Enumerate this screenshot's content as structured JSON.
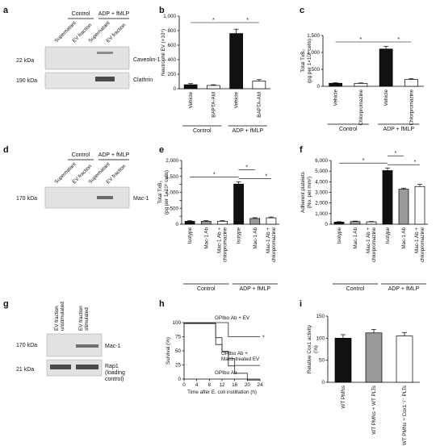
{
  "panel_labels": [
    "a",
    "b",
    "c",
    "d",
    "e",
    "f",
    "g",
    "h",
    "i"
  ],
  "blot_a": {
    "lanes": [
      "Supernatant",
      "EV fraction",
      "Supernatant",
      "EV fraction"
    ],
    "group_control": "Control",
    "group_stim": "ADP + fMLP",
    "rows": [
      {
        "kda": "22 kDa",
        "name": "Caveolin-1"
      },
      {
        "kda": "190 kDa",
        "name": "Clathrin"
      }
    ]
  },
  "blot_d": {
    "lanes": [
      "Supernatant",
      "EV fraction",
      "Supernatant",
      "EV fraction"
    ],
    "group_control": "Control",
    "group_stim": "ADP + fMLP",
    "rows": [
      {
        "kda": "170 kDa",
        "name": "Mac-1"
      }
    ]
  },
  "blot_g": {
    "lanes": [
      "EV fraction unstimulated",
      "EV fraction stimulated"
    ],
    "rows": [
      {
        "kda": "170 kDa",
        "name": "Mac-1"
      },
      {
        "kda": "21 kDa",
        "name": "Rap1 (loading control)"
      }
    ]
  },
  "chart_data": [
    {
      "panel": "b",
      "type": "bar",
      "ylabel": "Neutrophil EV (×10⁵)",
      "ylim": [
        0,
        1000
      ],
      "yticks": [
        0,
        200,
        400,
        600,
        800,
        1000
      ],
      "categories": [
        "Vehicle",
        "BAPTA-AM",
        "Vehicle",
        "BAPTA-AM"
      ],
      "groups": [
        {
          "label": "Control",
          "span": [
            0,
            1
          ]
        },
        {
          "label": "ADP + fMLP",
          "span": [
            2,
            3
          ]
        }
      ],
      "values": [
        55,
        45,
        760,
        105
      ],
      "errors": [
        15,
        10,
        60,
        20
      ],
      "colors": [
        "#111111",
        "#ffffff",
        "#111111",
        "#ffffff"
      ],
      "annotations": [
        "*",
        "*"
      ]
    },
    {
      "panel": "c",
      "type": "bar",
      "ylabel": "Total TxB₂ (pg per 1×10⁶ cells)",
      "ylim": [
        0,
        1500
      ],
      "yticks": [
        0,
        500,
        1000,
        1500
      ],
      "categories": [
        "Vehicle",
        "Chlorpromazine",
        "Vehicle",
        "Chlorpromazine"
      ],
      "groups": [
        {
          "label": "Control",
          "span": [
            0,
            1
          ]
        },
        {
          "label": "ADP + fMLP",
          "span": [
            2,
            3
          ]
        }
      ],
      "values": [
        90,
        85,
        1100,
        200
      ],
      "errors": [
        15,
        15,
        80,
        25
      ],
      "colors": [
        "#111111",
        "#ffffff",
        "#111111",
        "#ffffff"
      ],
      "annotations": [
        "*",
        "*"
      ]
    },
    {
      "panel": "e",
      "type": "bar",
      "ylabel": "Total TxB₂ (pg per 1×10⁶ cells)",
      "ylim": [
        0,
        2000
      ],
      "yticks": [
        0,
        250,
        500,
        750,
        1000,
        1250,
        1500,
        1750,
        2000
      ],
      "yticklabels": [
        "0",
        "",
        "500",
        "",
        "1,000",
        "",
        "1,500",
        "",
        "2,000"
      ],
      "categories": [
        "Isotype",
        "Mac-1 Ab",
        "Mac-1 Ab + chlorpromazine",
        "Isotype",
        "Mac-1 Ab",
        "Mac-1 Ab + chlorpromazine"
      ],
      "groups": [
        {
          "label": "Control",
          "span": [
            0,
            2
          ]
        },
        {
          "label": "ADP + fMLP",
          "span": [
            3,
            5
          ]
        }
      ],
      "values": [
        90,
        90,
        90,
        1260,
        180,
        200
      ],
      "errors": [
        20,
        20,
        20,
        70,
        25,
        25
      ],
      "colors": [
        "#111111",
        "#9a9a9a",
        "#ffffff",
        "#111111",
        "#9a9a9a",
        "#ffffff"
      ],
      "annotations": [
        "*",
        "*",
        "*"
      ]
    },
    {
      "panel": "f",
      "type": "bar",
      "ylabel": "Adherent platelets (No. per mm²)",
      "ylim": [
        0,
        6000
      ],
      "yticks": [
        0,
        1000,
        2000,
        3000,
        4000,
        5000,
        6000
      ],
      "yticklabels": [
        "0",
        "1,000",
        "2,000",
        "3,000",
        "4,000",
        "5,000",
        "6,000"
      ],
      "categories": [
        "Isotype",
        "Mac-1 Ab",
        "Mac-1 Ab + chlorpromazine",
        "Isotype",
        "Mac-1 Ab",
        "Mac-1 Ab + chlorpromazine"
      ],
      "groups": [
        {
          "label": "Control",
          "span": [
            0,
            2
          ]
        },
        {
          "label": "ADP + fMLP",
          "span": [
            3,
            5
          ]
        }
      ],
      "values": [
        200,
        250,
        220,
        5050,
        3300,
        3550
      ],
      "errors": [
        40,
        50,
        40,
        250,
        100,
        200
      ],
      "colors": [
        "#111111",
        "#9a9a9a",
        "#ffffff",
        "#111111",
        "#9a9a9a",
        "#ffffff"
      ],
      "annotations": [
        "*",
        "*",
        "*"
      ]
    },
    {
      "panel": "h",
      "type": "line",
      "xlabel": "Time after E. coli instillation (h)",
      "ylabel": "Survival (%)",
      "xlim": [
        0,
        24
      ],
      "ylim": [
        0,
        100
      ],
      "xticks": [
        0,
        4,
        8,
        12,
        16,
        20,
        24
      ],
      "yticks": [
        0,
        25,
        50,
        75,
        100
      ],
      "series": [
        {
          "name": "GPIbα Ab + EV",
          "x": [
            0,
            14,
            14,
            24
          ],
          "y": [
            100,
            100,
            75,
            75
          ]
        },
        {
          "name": "GPIbα Ab + Mac1-treated EV",
          "x": [
            0,
            10,
            10,
            12,
            12,
            14,
            14,
            16,
            16,
            24
          ],
          "y": [
            100,
            100,
            62,
            62,
            50,
            50,
            37,
            37,
            25,
            25
          ]
        },
        {
          "name": "GPIbα Ab",
          "x": [
            0,
            10,
            10,
            12,
            12,
            14,
            14,
            16,
            16,
            20,
            20,
            24
          ],
          "y": [
            100,
            100,
            75,
            75,
            50,
            50,
            25,
            25,
            12,
            12,
            0,
            0
          ]
        }
      ],
      "annotations": [
        "*"
      ]
    },
    {
      "panel": "i",
      "type": "bar",
      "ylabel": "Relative Cox1 activity (%)",
      "ylim": [
        0,
        150
      ],
      "yticks": [
        0,
        50,
        100,
        150
      ],
      "categories": [
        "WT PMNs",
        "WT PMNs + WT PLTs",
        "WT PMNs + Cox1⁻/⁻ PLTs"
      ],
      "values": [
        100,
        112,
        105
      ],
      "errors": [
        8,
        8,
        8
      ],
      "colors": [
        "#111111",
        "#9a9a9a",
        "#ffffff"
      ]
    }
  ]
}
